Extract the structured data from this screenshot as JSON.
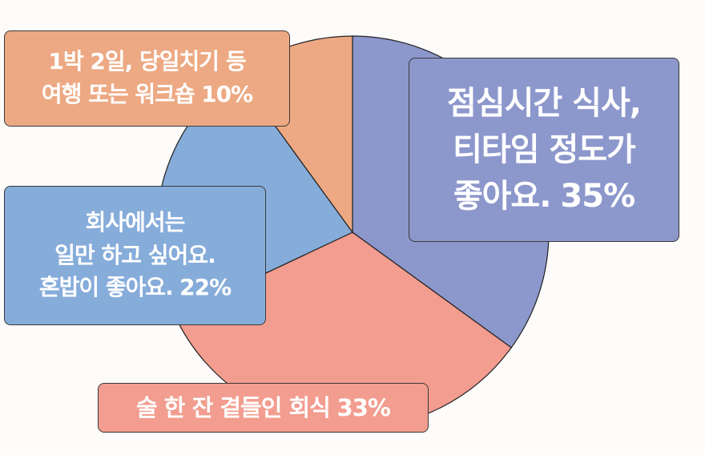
{
  "chart_data": {
    "type": "pie",
    "categories": [
      "점심시간 식사,\n티타임 정도가\n좋아요.",
      "술 한 잔 곁들인 회식",
      "회사에서는\n일만 하고 싶어요.\n혼밥이 좋아요.",
      "1박 2일, 당일치기 등\n여행 또는 워크숍"
    ],
    "values": [
      35,
      33,
      22,
      10
    ],
    "value_labels": [
      "35%",
      "33%",
      "22%",
      "10%"
    ],
    "colors": [
      "#8c97cc",
      "#f29d8f",
      "#86acda",
      "#eda983"
    ]
  }
}
